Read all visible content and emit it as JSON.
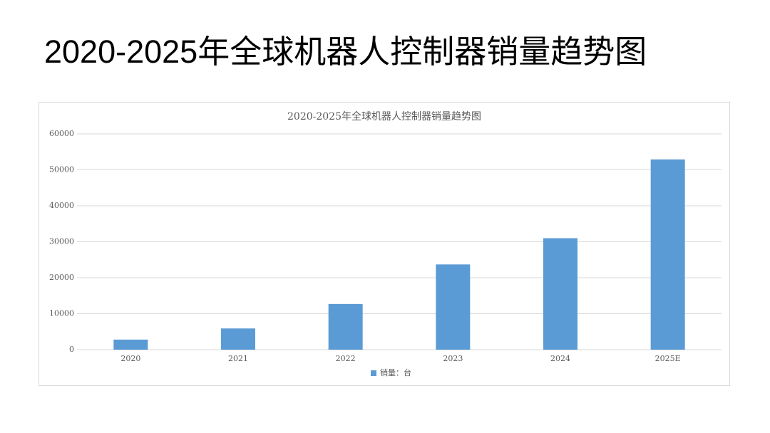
{
  "slide_title": "2020-2025年全球机器人控制器销量趋势图",
  "chart_data": {
    "type": "bar",
    "title": "2020-2025年全球机器人控制器销量趋势图",
    "categories": [
      "2020",
      "2021",
      "2022",
      "2023",
      "2024",
      "2025E"
    ],
    "series": [
      {
        "name": "销量：台",
        "color": "#5b9bd5",
        "values": [
          2800,
          5900,
          12700,
          23700,
          31000,
          52900
        ]
      }
    ],
    "ylim": [
      0,
      60000
    ],
    "yticks": [
      0,
      10000,
      20000,
      30000,
      40000,
      50000,
      60000
    ],
    "grid": true,
    "legend": "bottom"
  }
}
